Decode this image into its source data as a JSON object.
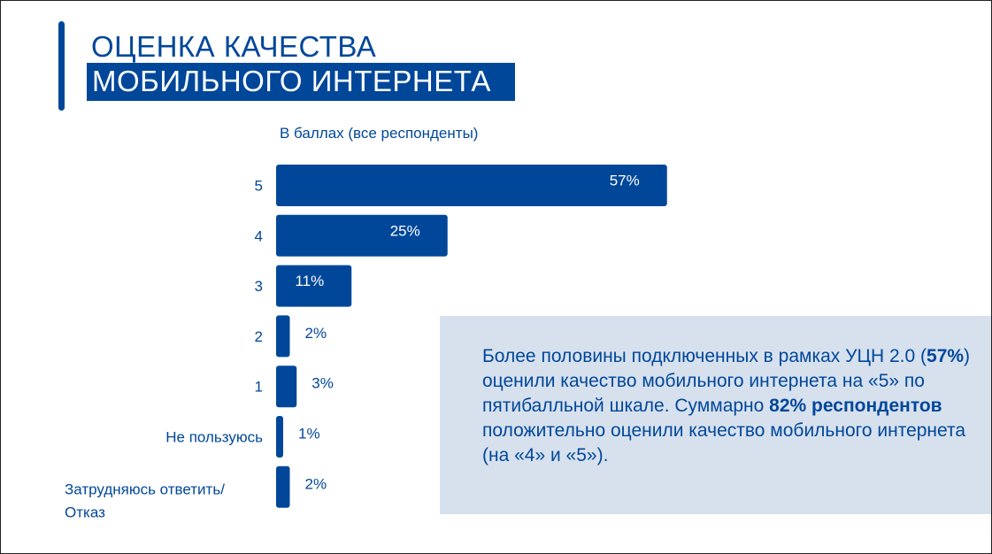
{
  "title": {
    "line1": "ОЦЕНКА КАЧЕСТВА",
    "line2": "МОБИЛЬНОГО ИНТЕРНЕТА"
  },
  "colors": {
    "brand": "#00479a",
    "box_bg": "#d7e1ee",
    "text_on_bar": "#ffffff"
  },
  "chart_data": {
    "type": "bar",
    "orientation": "horizontal",
    "subtitle": "В баллах (все респонденты)",
    "categories": [
      [
        "5"
      ],
      [
        "4"
      ],
      [
        "3"
      ],
      [
        "2"
      ],
      [
        "1"
      ],
      [
        "Не пользуюсь"
      ],
      [
        "Затрудняюсь ответить/",
        "Отказ"
      ]
    ],
    "values": [
      57,
      25,
      11,
      2,
      3,
      1,
      2
    ],
    "value_labels": [
      "57%",
      "25%",
      "11%",
      "2%",
      "3%",
      "1%",
      "2%"
    ],
    "unit": "%",
    "xlim": [
      0,
      60
    ],
    "grid": false,
    "legend": "none"
  },
  "summary": {
    "text_1": "Более половины подключенных в рамках УЦН 2.0 (",
    "bold_1": "57%",
    "text_2": ") оценили качество мобильного интернета на «5» по пятибалльной шкале. Суммарно ",
    "bold_2": "82% респондентов",
    "text_3": " положительно оценили качество мобильного интернета (на «4» и «5»)."
  }
}
